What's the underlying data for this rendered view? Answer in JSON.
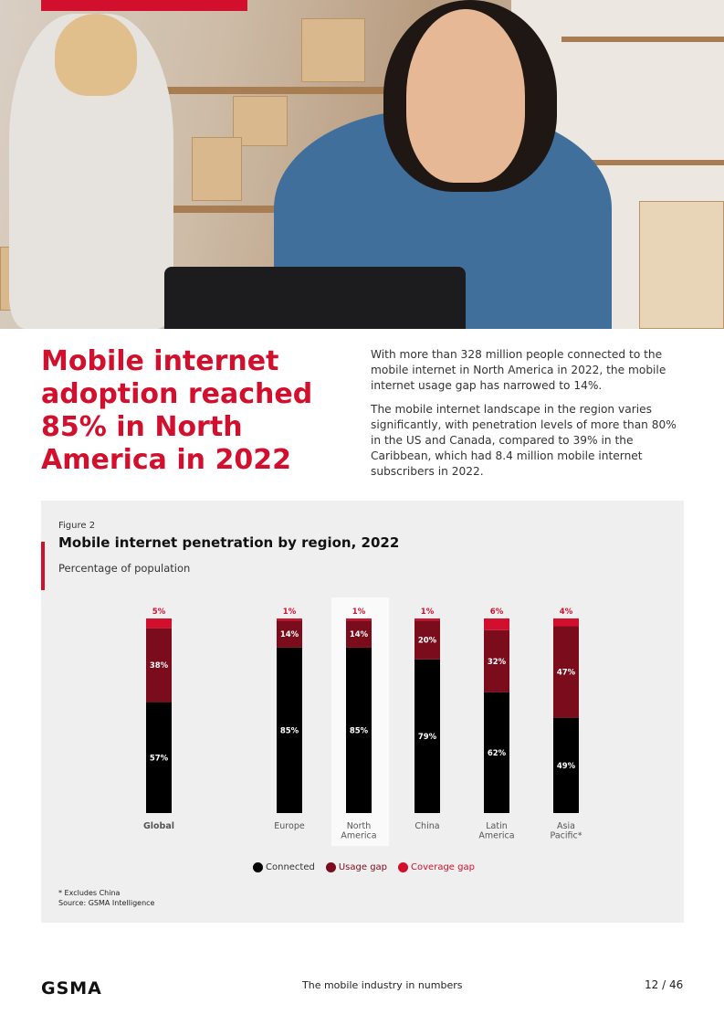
{
  "headline": "Mobile internet adoption reached 85% in North America in 2022",
  "intro": [
    "With more than 328 million people connected to the mobile internet in North America in 2022, the mobile internet usage gap has narrowed to 14%.",
    "The mobile internet landscape in the region varies significantly, with penetration levels of more than 80% in the US and Canada, compared to 39% in the Caribbean, which had 8.4 million mobile internet subscribers in 2022."
  ],
  "figure": {
    "label": "Figure 2",
    "title": "Mobile internet penetration by region, 2022",
    "subtitle": "Percentage of population",
    "notes": [
      "* Excludes China",
      "Source: GSMA Intelligence"
    ]
  },
  "colors": {
    "connected": "#000000",
    "usage_gap": "#7a0c1b",
    "coverage_gap": "#d2102e",
    "brand": "#d2102e"
  },
  "chart_data": {
    "type": "bar",
    "stacked": true,
    "title": "Mobile internet penetration by region, 2022",
    "ylabel": "Percentage of population",
    "categories": [
      "Global",
      "Europe",
      "North America",
      "China",
      "Latin America",
      "Asia Pacific*"
    ],
    "series": [
      {
        "name": "Connected",
        "values": [
          57,
          85,
          85,
          79,
          62,
          49
        ]
      },
      {
        "name": "Usage gap",
        "values": [
          38,
          14,
          14,
          20,
          32,
          47
        ]
      },
      {
        "name": "Coverage gap",
        "values": [
          5,
          1,
          1,
          1,
          6,
          4
        ]
      }
    ],
    "ylim": [
      0,
      100
    ],
    "highlight_category": "North America",
    "legend_position": "bottom"
  },
  "footer": {
    "logo": "GSMA",
    "center": "The mobile industry in numbers",
    "page": "12 / 46"
  }
}
